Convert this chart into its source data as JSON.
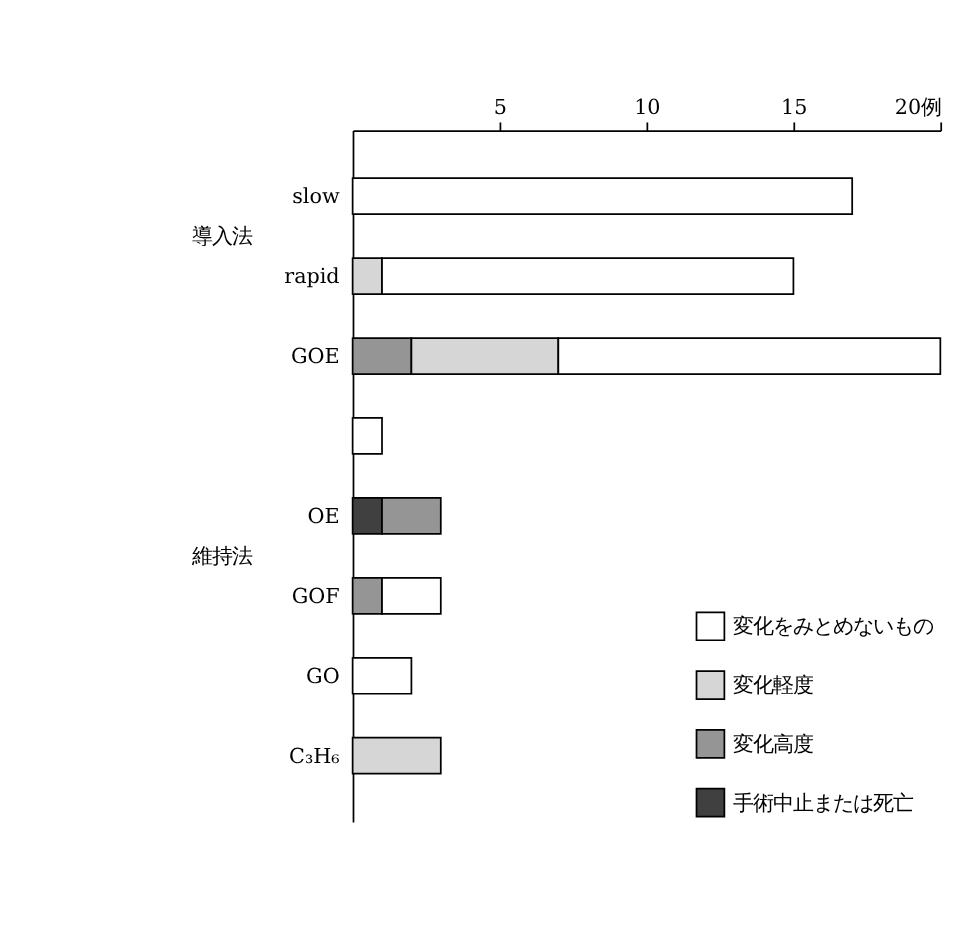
{
  "chart_data": {
    "type": "bar",
    "orientation": "horizontal",
    "stacked": true,
    "categories": [
      "slow",
      "rapid",
      "GOE",
      null,
      "OE",
      "GOF",
      "GO",
      "C₃H₆"
    ],
    "series": [
      {
        "name": "手術中止または死亡",
        "color": "#404040",
        "values": [
          0,
          0,
          0,
          0,
          1,
          0,
          0,
          0
        ]
      },
      {
        "name": "変化高度",
        "color": "#959595",
        "values": [
          0,
          0,
          2,
          0,
          2,
          1,
          0,
          0
        ]
      },
      {
        "name": "変化軽度",
        "color": "#d6d6d6",
        "values": [
          0,
          1,
          5,
          0,
          0,
          0,
          0,
          3
        ]
      },
      {
        "name": "変化をみとめないもの",
        "color": "#ffffff",
        "values": [
          17,
          14,
          13,
          1,
          0,
          2,
          2,
          0
        ]
      }
    ],
    "xlim": [
      0,
      20
    ],
    "xticks": [
      5,
      10,
      15,
      {
        "value": 20,
        "label": "20例"
      }
    ],
    "annotations": [
      "導入法",
      "維持法"
    ],
    "legend": "bottom right",
    "grid": false
  }
}
